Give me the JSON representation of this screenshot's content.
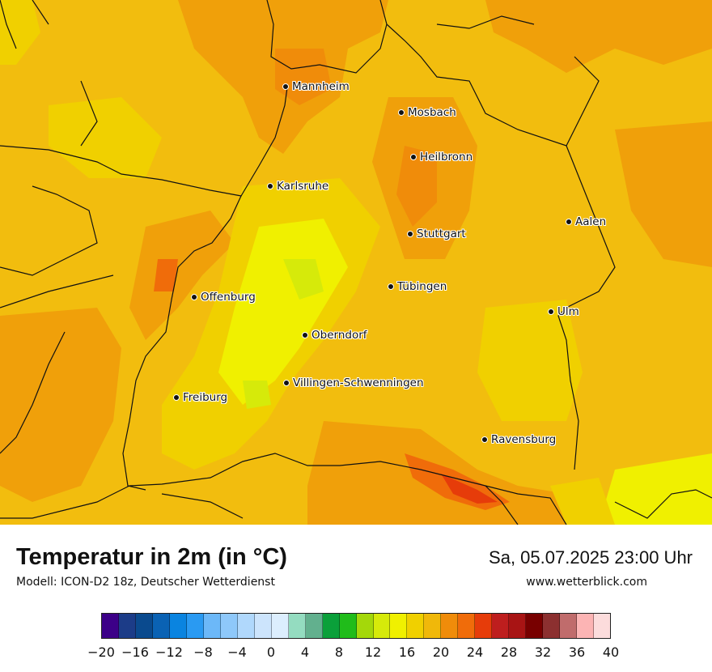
{
  "title": "Temperatur in 2m (in °C)",
  "model": "Modell: ICON-D2 18z, Deutscher Wetterdienst",
  "datetime": "Sa, 05.07.2025 23:00 Uhr",
  "website": "www.wetterblick.com",
  "cities": [
    {
      "id": "mannheim",
      "name": "Mannheim"
    },
    {
      "id": "mosbach",
      "name": "Mosbach"
    },
    {
      "id": "heilbronn",
      "name": "Heilbronn"
    },
    {
      "id": "karlsruhe",
      "name": "Karlsruhe"
    },
    {
      "id": "aalen",
      "name": "Aalen"
    },
    {
      "id": "stuttgart",
      "name": "Stuttgart"
    },
    {
      "id": "tuebingen",
      "name": "Tübingen"
    },
    {
      "id": "offenburg",
      "name": "Offenburg"
    },
    {
      "id": "ulm",
      "name": "Ulm"
    },
    {
      "id": "oberndorf",
      "name": "Oberndorf"
    },
    {
      "id": "villingen",
      "name": "Villingen-Schwenningen"
    },
    {
      "id": "freiburg",
      "name": "Freiburg"
    },
    {
      "id": "ravensburg",
      "name": "Ravensburg"
    }
  ],
  "legend": {
    "unit": "°C",
    "min": -20,
    "max": 40,
    "step": 2,
    "colors": [
      "#3c0088",
      "#1c3c88",
      "#0a4a8e",
      "#0a62b4",
      "#0a84e0",
      "#2a9af2",
      "#6cb8f8",
      "#8ec8fa",
      "#b0d8fc",
      "#cce4fc",
      "#dceefe",
      "#94dcc0",
      "#62b08e",
      "#0aa03a",
      "#20bc1a",
      "#a4d80a",
      "#d6ea0a",
      "#f0f000",
      "#f0d000",
      "#f0b80a",
      "#f08c0a",
      "#f06c0a",
      "#e63c0a",
      "#be1e1e",
      "#a81414",
      "#780000",
      "#8c3030",
      "#c06c6c",
      "#fcb4b4",
      "#fcdcdc"
    ],
    "tick_labels": [
      "−20",
      "−16",
      "−12",
      "−8",
      "−4",
      "0",
      "4",
      "8",
      "12",
      "16",
      "20",
      "24",
      "28",
      "32",
      "36",
      "40"
    ]
  }
}
